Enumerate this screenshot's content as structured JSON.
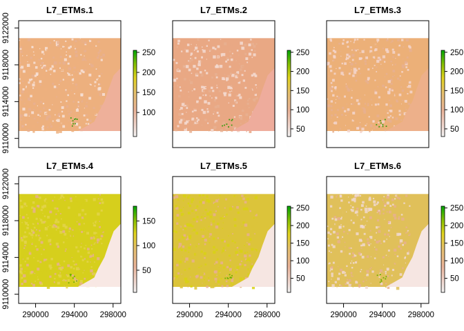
{
  "chart_data": [
    {
      "type": "heatmap",
      "title": "L7_ETMs.1",
      "xlim": [
        288250,
        298800
      ],
      "ylim": [
        9109000,
        9122800
      ],
      "x_ticks": [
        "290000",
        "294000",
        "298000"
      ],
      "y_ticks": [
        "9110000",
        "9114000",
        "9118000",
        "9122000"
      ],
      "data_extent": {
        "x": [
          288250,
          298800
        ],
        "y": [
          9110800,
          9120900
        ]
      },
      "show_x_ticks": false,
      "show_y_ticks": true,
      "legend": {
        "range": [
          40,
          255
        ],
        "ticks": [
          "100",
          "150",
          "200",
          "250"
        ],
        "position": "right"
      },
      "colors": {
        "base": "#edb07e",
        "bright": "#f7e2d8",
        "coast": "#f0a890",
        "sea": "#eeb09a"
      }
    },
    {
      "type": "heatmap",
      "title": "L7_ETMs.2",
      "xlim": [
        288250,
        298800
      ],
      "ylim": [
        9109000,
        9122800
      ],
      "x_ticks": [
        "290000",
        "294000",
        "298000"
      ],
      "y_ticks": [
        "9110000",
        "9114000",
        "9118000",
        "9122000"
      ],
      "data_extent": {
        "x": [
          288250,
          298800
        ],
        "y": [
          9110800,
          9120900
        ]
      },
      "show_x_ticks": false,
      "show_y_ticks": false,
      "legend": {
        "range": [
          30,
          255
        ],
        "ticks": [
          "50",
          "100",
          "150",
          "200",
          "250"
        ],
        "position": "right"
      },
      "colors": {
        "base": "#e9a884",
        "bright": "#f5dcd2",
        "coast": "#f0a890",
        "sea": "#eeac9c"
      }
    },
    {
      "type": "heatmap",
      "title": "L7_ETMs.3",
      "xlim": [
        288250,
        298800
      ],
      "ylim": [
        9109000,
        9122800
      ],
      "x_ticks": [
        "290000",
        "294000",
        "298000"
      ],
      "y_ticks": [
        "9110000",
        "9114000",
        "9118000",
        "9122000"
      ],
      "data_extent": {
        "x": [
          288250,
          298800
        ],
        "y": [
          9110800,
          9120900
        ]
      },
      "show_x_ticks": false,
      "show_y_ticks": false,
      "legend": {
        "range": [
          30,
          255
        ],
        "ticks": [
          "50",
          "100",
          "150",
          "200",
          "250"
        ],
        "position": "right"
      },
      "colors": {
        "base": "#ecb078",
        "bright": "#f4d6cc",
        "coast": "#eab27c",
        "sea": "#edb08a"
      }
    },
    {
      "type": "heatmap",
      "title": "L7_ETMs.4",
      "xlim": [
        288250,
        298800
      ],
      "ylim": [
        9109000,
        9122800
      ],
      "x_ticks": [
        "290000",
        "294000",
        "298000"
      ],
      "y_ticks": [
        "9110000",
        "9114000",
        "9118000",
        "9122000"
      ],
      "data_extent": {
        "x": [
          288250,
          298800
        ],
        "y": [
          9110800,
          9120900
        ]
      },
      "show_x_ticks": true,
      "show_y_ticks": true,
      "legend": {
        "range": [
          5,
          180
        ],
        "ticks": [
          "50",
          "100",
          "150"
        ],
        "position": "right"
      },
      "colors": {
        "base": "#d6cf1c",
        "bright": "#e3d34a",
        "coast": "#f8e8e4",
        "sea": "#f8e8e4"
      }
    },
    {
      "type": "heatmap",
      "title": "L7_ETMs.5",
      "xlim": [
        288250,
        298800
      ],
      "ylim": [
        9109000,
        9122800
      ],
      "x_ticks": [
        "290000",
        "294000",
        "298000"
      ],
      "y_ticks": [
        "9110000",
        "9114000",
        "9118000",
        "9122000"
      ],
      "data_extent": {
        "x": [
          288250,
          298800
        ],
        "y": [
          9110800,
          9120900
        ]
      },
      "show_x_ticks": true,
      "show_y_ticks": false,
      "legend": {
        "range": [
          10,
          255
        ],
        "ticks": [
          "50",
          "100",
          "150",
          "200",
          "250"
        ],
        "position": "right"
      },
      "colors": {
        "base": "#dcc43a",
        "bright": "#d8d214",
        "coast": "#f6e6e2",
        "sea": "#f6e6e2"
      }
    },
    {
      "type": "heatmap",
      "title": "L7_ETMs.6",
      "xlim": [
        288250,
        298800
      ],
      "ylim": [
        9109000,
        9122800
      ],
      "x_ticks": [
        "290000",
        "294000",
        "298000"
      ],
      "y_ticks": [
        "9110000",
        "9114000",
        "9118000",
        "9122000"
      ],
      "data_extent": {
        "x": [
          288250,
          298800
        ],
        "y": [
          9110800,
          9120900
        ]
      },
      "show_x_ticks": true,
      "show_y_ticks": false,
      "legend": {
        "range": [
          10,
          255
        ],
        "ticks": [
          "50",
          "100",
          "150",
          "200",
          "250"
        ],
        "position": "right"
      },
      "colors": {
        "base": "#e0c05a",
        "bright": "#f0d8d0",
        "coast": "#f6e6e2",
        "sea": "#f6e6e2"
      }
    }
  ]
}
